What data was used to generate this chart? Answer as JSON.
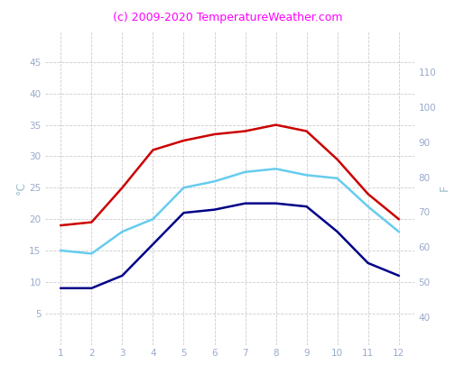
{
  "title": "(c) 2009-2020 TemperatureWeather.com",
  "title_color": "#ff00ff",
  "title_fontsize": 9,
  "ylabel_left": "°C",
  "ylabel_right": "F",
  "x": [
    1,
    2,
    3,
    4,
    5,
    6,
    7,
    8,
    9,
    10,
    11,
    12
  ],
  "red_line": [
    19,
    19.5,
    25,
    31,
    32.5,
    33.5,
    34,
    35,
    34,
    29.5,
    24,
    20
  ],
  "cyan_line": [
    15,
    14.5,
    18,
    20,
    25,
    26,
    27.5,
    28,
    27,
    26.5,
    22,
    18
  ],
  "blue_line": [
    9,
    9,
    11,
    16,
    21,
    21.5,
    22.5,
    22.5,
    22,
    18,
    13,
    11
  ],
  "red_color": "#cc0000",
  "cyan_color": "#66ccee",
  "blue_color": "#000088",
  "ylim_left": [
    0,
    50
  ],
  "ylim_right": [
    32,
    122
  ],
  "yticks_left": [
    5,
    10,
    15,
    20,
    25,
    30,
    35,
    40,
    45
  ],
  "yticks_right": [
    40,
    50,
    60,
    70,
    80,
    90,
    100,
    110
  ],
  "xticks": [
    1,
    2,
    3,
    4,
    5,
    6,
    7,
    8,
    9,
    10,
    11,
    12
  ],
  "grid_color": "#cccccc",
  "bg_color": "#ffffff",
  "axis_label_color": "#99bbcc",
  "tick_label_color": "#99aacc",
  "tick_fontsize": 7.5,
  "line_width": 1.8,
  "xlim": [
    0.5,
    12.5
  ]
}
